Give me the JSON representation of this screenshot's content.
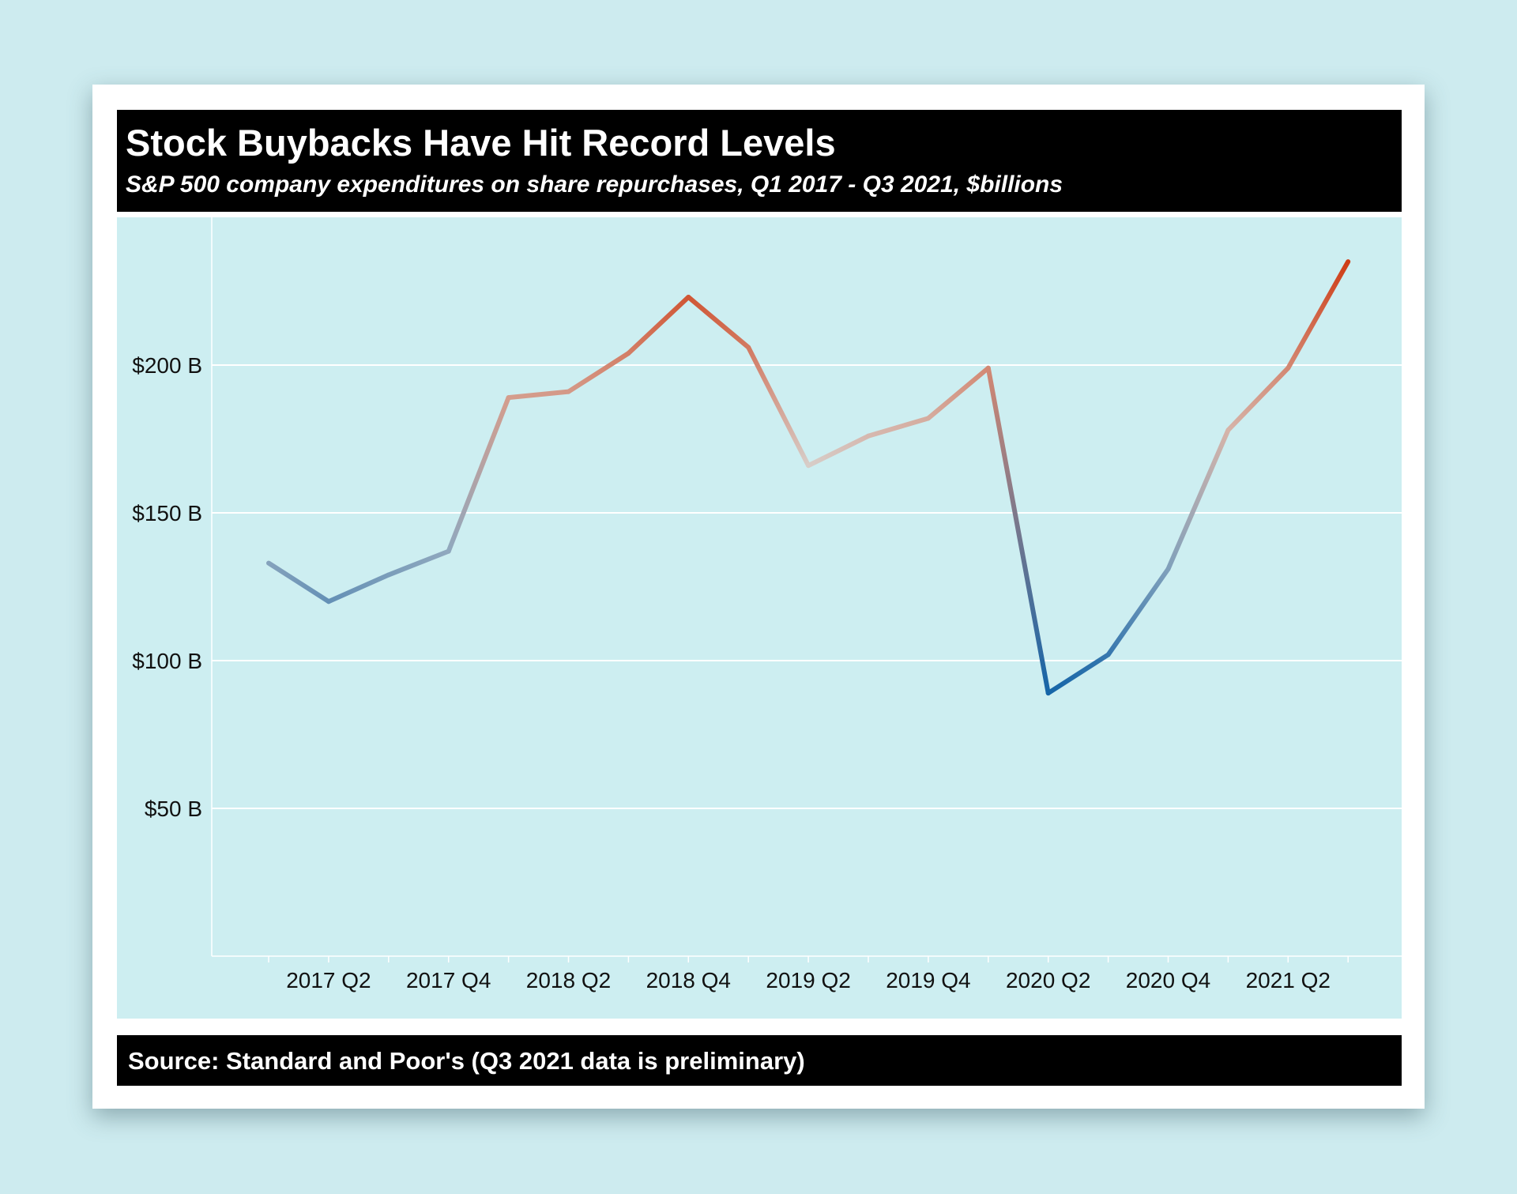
{
  "chart_data": {
    "type": "line",
    "title": "Stock Buybacks Have Hit Record Levels",
    "subtitle": "S&P 500 company expenditures on share repurchases, Q1 2017 - Q3 2021, $billions",
    "source": "Source: Standard and Poor's (Q3 2021 data is preliminary)",
    "x": [
      "2017 Q1",
      "2017 Q2",
      "2017 Q3",
      "2017 Q4",
      "2018 Q1",
      "2018 Q2",
      "2018 Q3",
      "2018 Q4",
      "2019 Q1",
      "2019 Q2",
      "2019 Q3",
      "2019 Q4",
      "2020 Q1",
      "2020 Q2",
      "2020 Q3",
      "2020 Q4",
      "2021 Q1",
      "2021 Q2",
      "2021 Q3"
    ],
    "x_tick_labels": [
      "2017 Q2",
      "2017 Q4",
      "2018 Q2",
      "2018 Q4",
      "2019 Q2",
      "2019 Q4",
      "2020 Q2",
      "2020 Q4",
      "2021 Q2"
    ],
    "series": [
      {
        "values": [
          133,
          120,
          129,
          137,
          189,
          191,
          204,
          223,
          206,
          166,
          176,
          182,
          199,
          89,
          102,
          131,
          178,
          199,
          235
        ]
      }
    ],
    "y_ticks": [
      50,
      100,
      150,
      200
    ],
    "y_tick_labels": [
      "$50 B",
      "$100 B",
      "$150 B",
      "$200 B"
    ],
    "ylim": [
      0,
      250
    ],
    "xlabel": "",
    "ylabel": "",
    "grid": true,
    "legend": "none",
    "colors": {
      "low": "#1565a8",
      "mid": "#d7cfcb",
      "high": "#cf3d16",
      "midpoint": 165,
      "background": "#cdebef",
      "panel": "#cdeef1",
      "banner": "#000000"
    }
  }
}
